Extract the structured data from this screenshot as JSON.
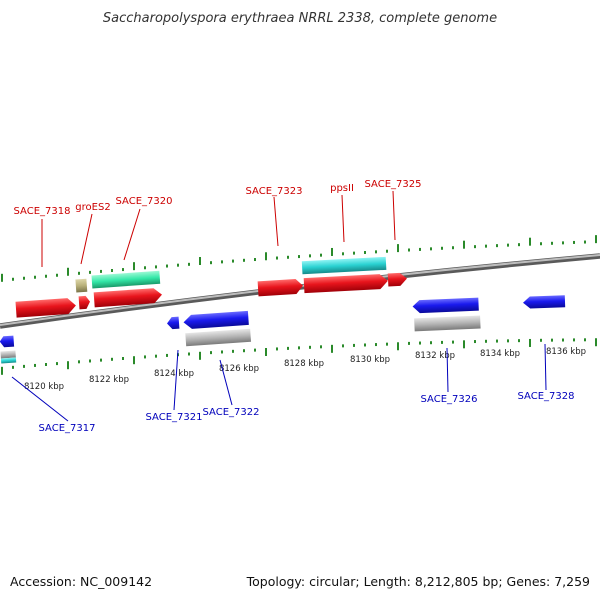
{
  "title": "Saccharopolyspora erythraea NRRL 2338, complete genome",
  "footer": {
    "accession": "Accession: NC_009142",
    "topology": "Topology: circular; Length: 8,212,805 bp; Genes: 7,259"
  },
  "colors": {
    "forward_label": "#cc0000",
    "reverse_label": "#0000bb",
    "tick": "#2a8a2a",
    "backbone": "#888888",
    "cds_forward": "#e8141c",
    "cds_reverse": "#1a1aee",
    "rna_teal": "#2ad2d2",
    "rna_mint": "#34e8a8",
    "rna_gray": "#b4b4b4",
    "rna_olive": "#b8b07a"
  },
  "scale_labels": [
    "8120 kbp",
    "8122 kbp",
    "8124 kbp",
    "8126 kbp",
    "8128 kbp",
    "8130 kbp",
    "8132 kbp",
    "8134 kbp",
    "8136 kbp"
  ],
  "forward_labels": [
    {
      "id": "sace-7318",
      "text": "SACE_7318"
    },
    {
      "id": "groes2",
      "text": "groES2"
    },
    {
      "id": "sace-7320",
      "text": "SACE_7320"
    },
    {
      "id": "sace-7323",
      "text": "SACE_7323"
    },
    {
      "id": "ppsii",
      "text": "ppsII"
    },
    {
      "id": "sace-7325",
      "text": "SACE_7325"
    }
  ],
  "reverse_labels": [
    {
      "id": "sace-7317",
      "text": "SACE_7317"
    },
    {
      "id": "sace-7321",
      "text": "SACE_7321"
    },
    {
      "id": "sace-7322",
      "text": "SACE_7322"
    },
    {
      "id": "sace-7326",
      "text": "SACE_7326"
    },
    {
      "id": "sace-7328",
      "text": "SACE_7328"
    }
  ]
}
